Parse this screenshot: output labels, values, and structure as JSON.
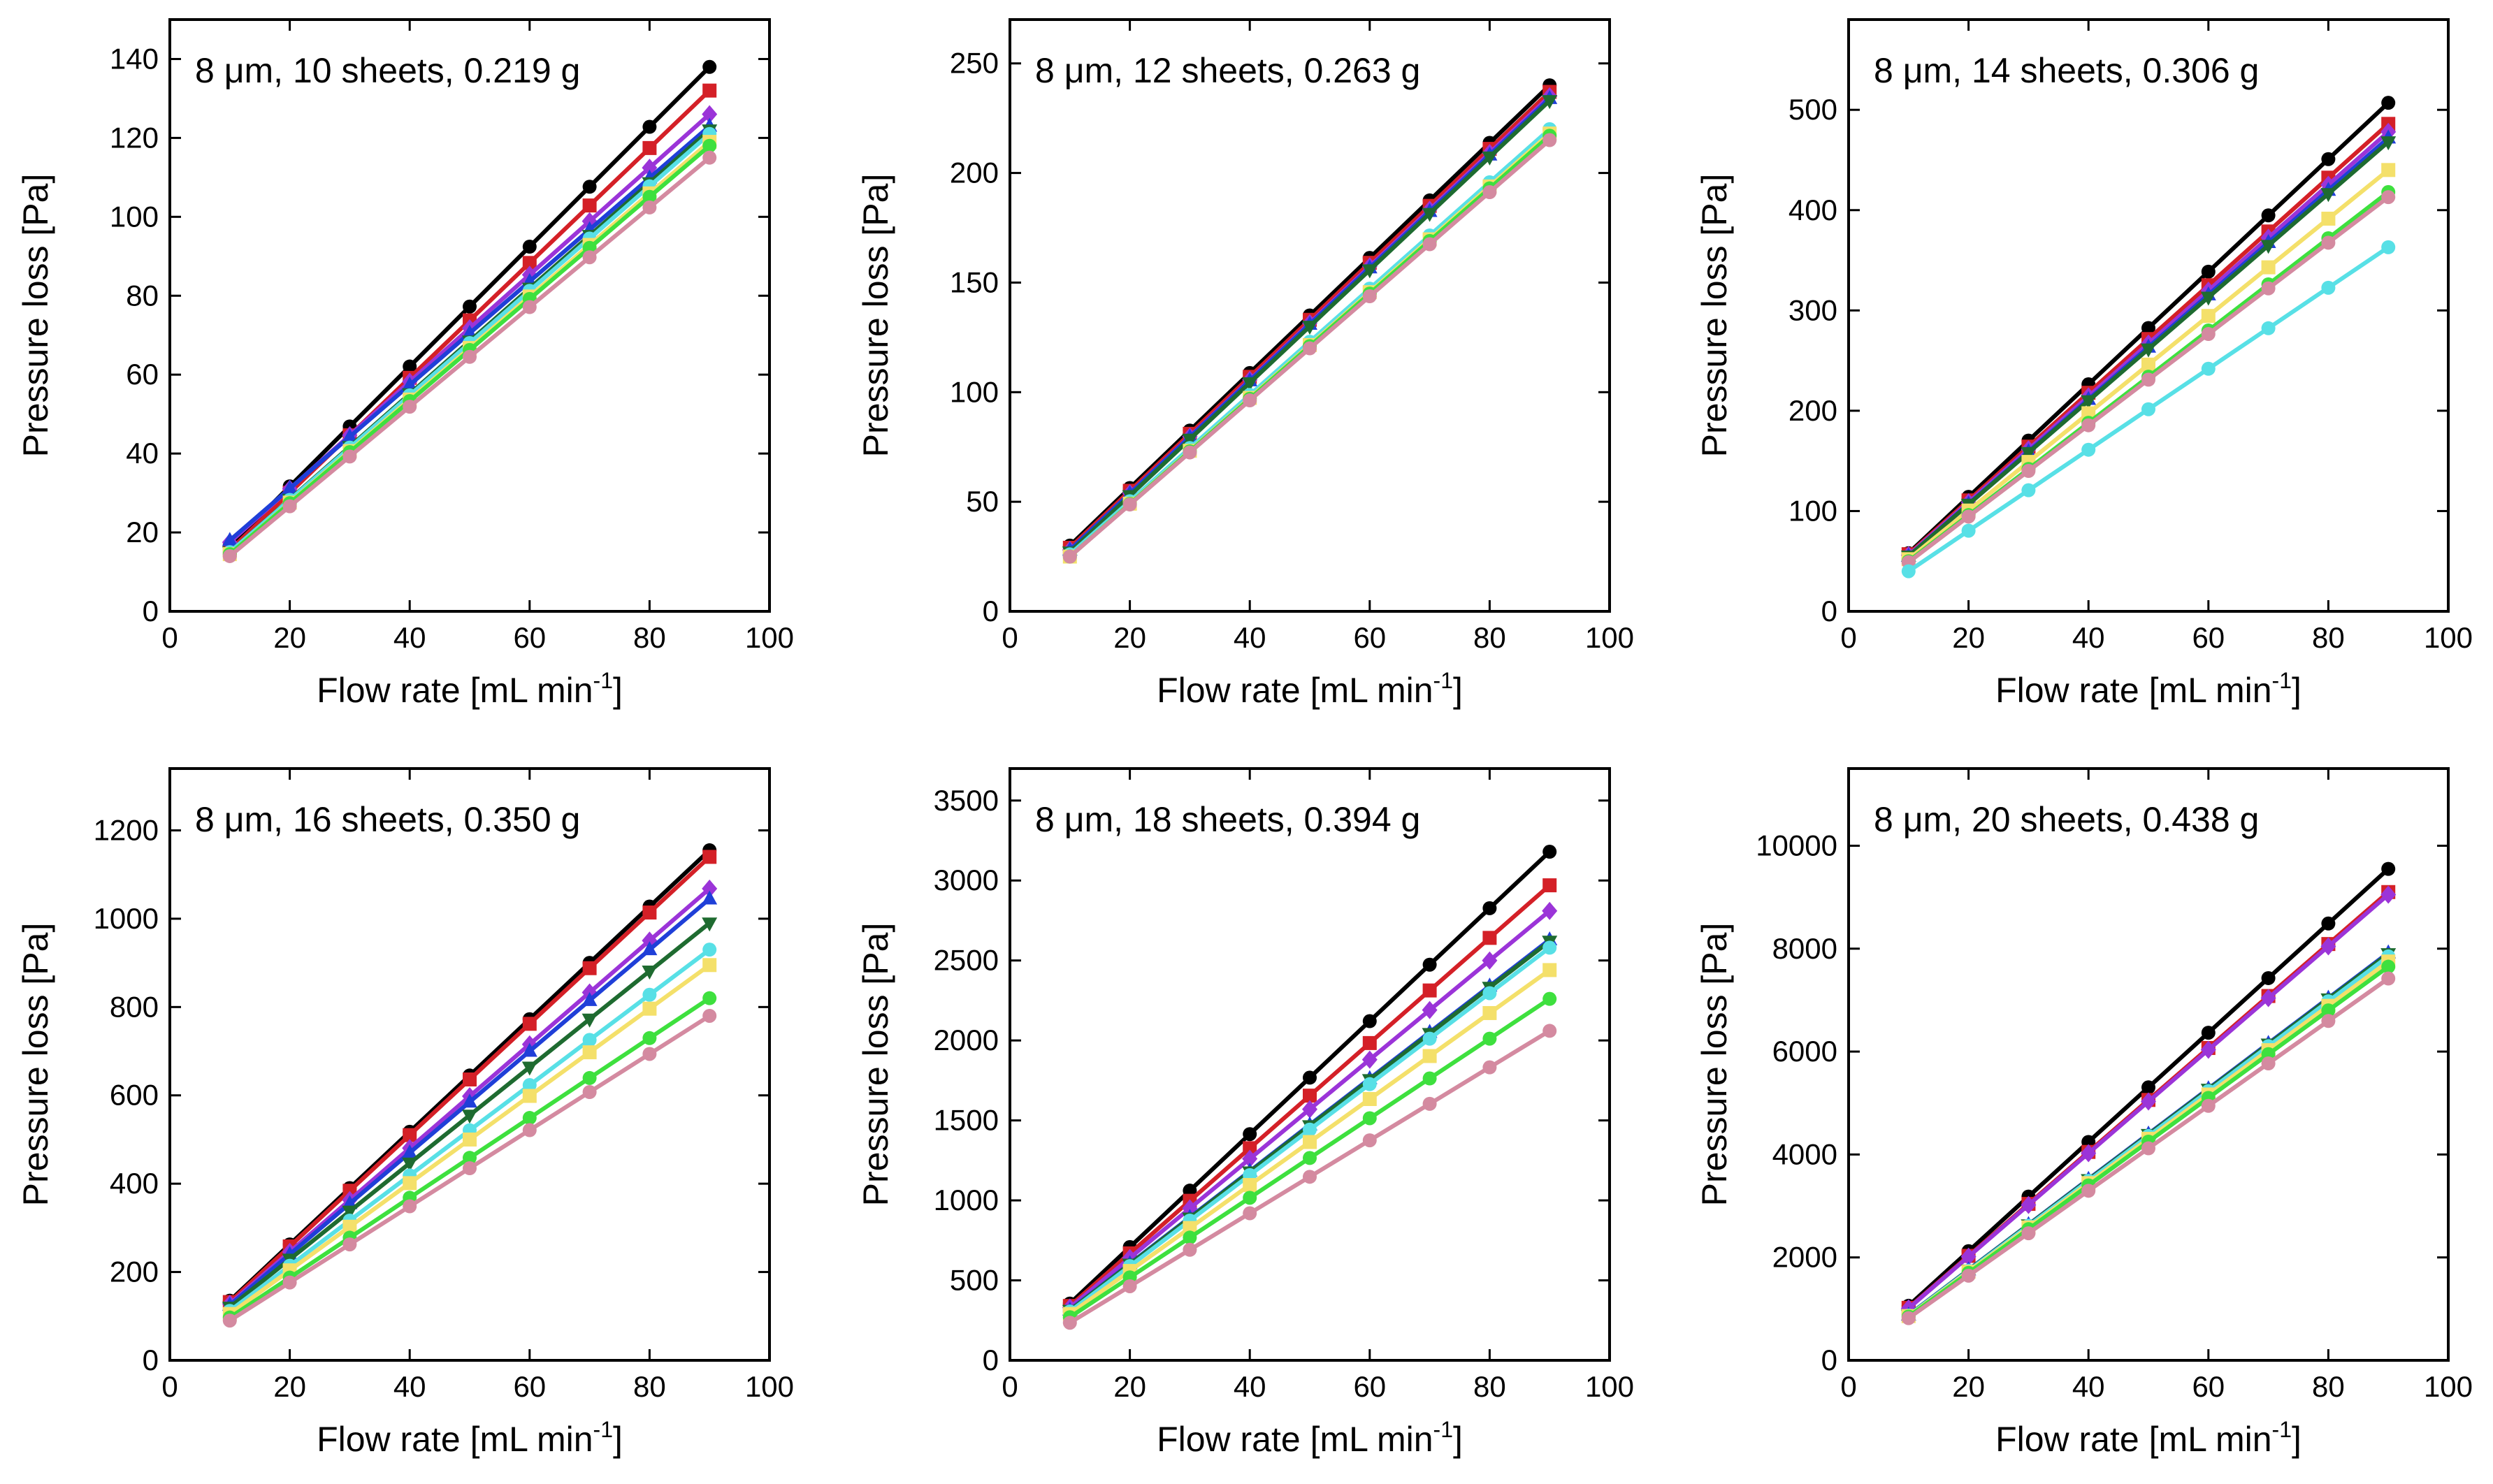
{
  "chart_data": [
    {
      "type": "line",
      "title_prefix": "8 μm, ",
      "title_main": "10 sheets, 0.219 g",
      "xlabel_main": "Flow rate [mL min",
      "xlabel_sup": "-1",
      "xlabel_end": "]",
      "ylabel": "Pressure loss [Pa]",
      "xlim": [
        0,
        100
      ],
      "ylim": [
        0,
        150
      ],
      "xticks": [
        0,
        20,
        40,
        60,
        80,
        100
      ],
      "yticks": [
        0,
        20,
        40,
        60,
        80,
        100,
        120,
        140
      ],
      "x": [
        10,
        20,
        30,
        40,
        50,
        60,
        70,
        80,
        90
      ],
      "series": [
        {
          "color": "#000000",
          "marker": "circle",
          "start": 16.5,
          "end": 138
        },
        {
          "color": "#d42027",
          "marker": "square",
          "start": 15.5,
          "end": 132
        },
        {
          "color": "#9b34d8",
          "marker": "diamond",
          "start": 17.5,
          "end": 126
        },
        {
          "color": "#1f3fd8",
          "marker": "triangle-up",
          "start": 18,
          "end": 123
        },
        {
          "color": "#1e6b30",
          "marker": "triangle-down",
          "start": 15,
          "end": 122
        },
        {
          "color": "#58e0e6",
          "marker": "circle",
          "start": 15,
          "end": 121
        },
        {
          "color": "#f4e06a",
          "marker": "square",
          "start": 14.5,
          "end": 119
        },
        {
          "color": "#3ee03e",
          "marker": "circle",
          "start": 14.5,
          "end": 118
        },
        {
          "color": "#d48aa0",
          "marker": "circle",
          "start": 14,
          "end": 115
        }
      ]
    },
    {
      "type": "line",
      "title_prefix": "8 μm, ",
      "title_main": "12 sheets, 0.263 g",
      "xlabel_main": "Flow rate [mL min",
      "xlabel_sup": "-1",
      "xlabel_end": "]",
      "ylabel": "Pressure loss [Pa]",
      "xlim": [
        0,
        100
      ],
      "ylim": [
        0,
        270
      ],
      "xticks": [
        0,
        20,
        40,
        60,
        80,
        100
      ],
      "yticks": [
        0,
        50,
        100,
        150,
        200,
        250
      ],
      "x": [
        10,
        20,
        30,
        40,
        50,
        60,
        70,
        80,
        90
      ],
      "series": [
        {
          "color": "#000000",
          "marker": "circle",
          "start": 30,
          "end": 240
        },
        {
          "color": "#d42027",
          "marker": "square",
          "start": 29,
          "end": 237
        },
        {
          "color": "#9b34d8",
          "marker": "diamond",
          "start": 28,
          "end": 235
        },
        {
          "color": "#1f3fd8",
          "marker": "triangle-up",
          "start": 28,
          "end": 234
        },
        {
          "color": "#1e6b30",
          "marker": "triangle-down",
          "start": 27,
          "end": 233
        },
        {
          "color": "#58e0e6",
          "marker": "circle",
          "start": 26,
          "end": 220
        },
        {
          "color": "#f4e06a",
          "marker": "square",
          "start": 25,
          "end": 218
        },
        {
          "color": "#3ee03e",
          "marker": "circle",
          "start": 25,
          "end": 217
        },
        {
          "color": "#d48aa0",
          "marker": "circle",
          "start": 25,
          "end": 215
        }
      ]
    },
    {
      "type": "line",
      "title_prefix": "8 μm, ",
      "title_main": "14 sheets, 0.306 g",
      "xlabel_main": "Flow rate [mL min",
      "xlabel_sup": "-1",
      "xlabel_end": "]",
      "ylabel": "Pressure loss [Pa]",
      "xlim": [
        0,
        100
      ],
      "ylim": [
        0,
        590
      ],
      "xticks": [
        0,
        20,
        40,
        60,
        80,
        100
      ],
      "yticks": [
        0,
        100,
        200,
        300,
        400,
        500
      ],
      "x": [
        10,
        20,
        30,
        40,
        50,
        60,
        70,
        80,
        90
      ],
      "series": [
        {
          "color": "#000000",
          "marker": "circle",
          "start": 58,
          "end": 507
        },
        {
          "color": "#d42027",
          "marker": "square",
          "start": 57,
          "end": 486
        },
        {
          "color": "#9b34d8",
          "marker": "diamond",
          "start": 56,
          "end": 478
        },
        {
          "color": "#1f3fd8",
          "marker": "triangle-up",
          "start": 55,
          "end": 472
        },
        {
          "color": "#1e6b30",
          "marker": "triangle-down",
          "start": 55,
          "end": 468
        },
        {
          "color": "#f4e06a",
          "marker": "square",
          "start": 52,
          "end": 440
        },
        {
          "color": "#3ee03e",
          "marker": "circle",
          "start": 50,
          "end": 418
        },
        {
          "color": "#d48aa0",
          "marker": "circle",
          "start": 49,
          "end": 413
        },
        {
          "color": "#58e0e6",
          "marker": "circle",
          "start": 40,
          "end": 363
        }
      ]
    },
    {
      "type": "line",
      "title_prefix": "8 μm, ",
      "title_main": "16 sheets, 0.350 g",
      "xlabel_main": "Flow rate [mL min",
      "xlabel_sup": "-1",
      "xlabel_end": "]",
      "ylabel": "Pressure loss [Pa]",
      "xlim": [
        0,
        100
      ],
      "ylim": [
        0,
        1340
      ],
      "xticks": [
        0,
        20,
        40,
        60,
        80,
        100
      ],
      "yticks": [
        0,
        200,
        400,
        600,
        800,
        1000,
        1200
      ],
      "x": [
        10,
        20,
        30,
        40,
        50,
        60,
        70,
        80,
        90
      ],
      "series": [
        {
          "color": "#000000",
          "marker": "circle",
          "start": 135,
          "end": 1155
        },
        {
          "color": "#d42027",
          "marker": "square",
          "start": 132,
          "end": 1140
        },
        {
          "color": "#9b34d8",
          "marker": "diamond",
          "start": 128,
          "end": 1068
        },
        {
          "color": "#1f3fd8",
          "marker": "triangle-up",
          "start": 125,
          "end": 1045
        },
        {
          "color": "#1e6b30",
          "marker": "triangle-down",
          "start": 120,
          "end": 990
        },
        {
          "color": "#58e0e6",
          "marker": "circle",
          "start": 112,
          "end": 930
        },
        {
          "color": "#f4e06a",
          "marker": "square",
          "start": 105,
          "end": 895
        },
        {
          "color": "#3ee03e",
          "marker": "circle",
          "start": 97,
          "end": 820
        },
        {
          "color": "#d48aa0",
          "marker": "circle",
          "start": 90,
          "end": 780
        }
      ]
    },
    {
      "type": "line",
      "title_prefix": "8 μm, ",
      "title_main": "18 sheets, 0.394 g",
      "xlabel_main": "Flow rate [mL min",
      "xlabel_sup": "-1",
      "xlabel_end": "]",
      "ylabel": "Pressure loss [Pa]",
      "xlim": [
        0,
        100
      ],
      "ylim": [
        0,
        3700
      ],
      "xticks": [
        0,
        20,
        40,
        60,
        80,
        100
      ],
      "yticks": [
        0,
        500,
        1000,
        1500,
        2000,
        2500,
        3000,
        3500
      ],
      "x": [
        10,
        20,
        30,
        40,
        50,
        60,
        70,
        80,
        90
      ],
      "series": [
        {
          "color": "#000000",
          "marker": "circle",
          "start": 355,
          "end": 3180
        },
        {
          "color": "#d42027",
          "marker": "square",
          "start": 340,
          "end": 2970
        },
        {
          "color": "#9b34d8",
          "marker": "diamond",
          "start": 330,
          "end": 2810
        },
        {
          "color": "#1f3fd8",
          "marker": "triangle-up",
          "start": 315,
          "end": 2630
        },
        {
          "color": "#1e6b30",
          "marker": "triangle-down",
          "start": 312,
          "end": 2620
        },
        {
          "color": "#58e0e6",
          "marker": "circle",
          "start": 305,
          "end": 2580
        },
        {
          "color": "#f4e06a",
          "marker": "square",
          "start": 290,
          "end": 2440
        },
        {
          "color": "#3ee03e",
          "marker": "circle",
          "start": 270,
          "end": 2260
        },
        {
          "color": "#d48aa0",
          "marker": "circle",
          "start": 235,
          "end": 2060
        }
      ]
    },
    {
      "type": "line",
      "title_prefix": "8 μm, ",
      "title_main": "20 sheets, 0.438 g",
      "xlabel_main": "Flow rate [mL min",
      "xlabel_sup": "-1",
      "xlabel_end": "]",
      "ylabel": "Pressure loss [Pa]",
      "xlim": [
        0,
        100
      ],
      "ylim": [
        0,
        11500
      ],
      "xticks": [
        0,
        20,
        40,
        60,
        80,
        100
      ],
      "yticks": [
        0,
        2000,
        4000,
        6000,
        8000,
        10000
      ],
      "x": [
        10,
        20,
        30,
        40,
        50,
        60,
        70,
        80,
        90
      ],
      "series": [
        {
          "color": "#000000",
          "marker": "circle",
          "start": 1060,
          "end": 9550
        },
        {
          "color": "#d42027",
          "marker": "square",
          "start": 1020,
          "end": 9100
        },
        {
          "color": "#9b34d8",
          "marker": "diamond",
          "start": 1010,
          "end": 9050
        },
        {
          "color": "#1f3fd8",
          "marker": "triangle-up",
          "start": 880,
          "end": 7920
        },
        {
          "color": "#1e6b30",
          "marker": "triangle-down",
          "start": 875,
          "end": 7900
        },
        {
          "color": "#58e0e6",
          "marker": "circle",
          "start": 870,
          "end": 7850
        },
        {
          "color": "#f4e06a",
          "marker": "square",
          "start": 860,
          "end": 7750
        },
        {
          "color": "#3ee03e",
          "marker": "circle",
          "start": 850,
          "end": 7650
        },
        {
          "color": "#d48aa0",
          "marker": "circle",
          "start": 820,
          "end": 7420
        }
      ]
    }
  ]
}
